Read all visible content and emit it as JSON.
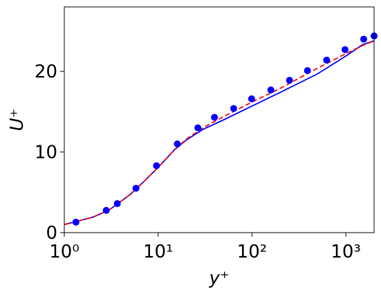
{
  "chart_data": {
    "type": "line",
    "xlabel": "y⁺",
    "ylabel": "U⁺",
    "xscale": "log",
    "xlim": [
      1,
      2000
    ],
    "ylim": [
      0,
      28
    ],
    "xticks": [
      {
        "value": 1,
        "label": "10⁰"
      },
      {
        "value": 10,
        "label": "10¹"
      },
      {
        "value": 100,
        "label": "10²"
      },
      {
        "value": 1000,
        "label": "10³"
      }
    ],
    "yticks": [
      0,
      10,
      20
    ],
    "series": [
      {
        "color": "#0000ff",
        "linestyle": "solid",
        "x": [
          1,
          2,
          3,
          5,
          7,
          10,
          15,
          20,
          30,
          50,
          100,
          200,
          500,
          1000,
          1500,
          2000
        ],
        "values": [
          1.0,
          1.9,
          2.8,
          4.7,
          6.3,
          8.1,
          10.3,
          11.5,
          12.8,
          14.0,
          15.7,
          17.4,
          19.7,
          21.9,
          23.3,
          23.8
        ]
      },
      {
        "color": "#ff0000",
        "linestyle": "dashed",
        "x": [
          1,
          2,
          3,
          5,
          7,
          10,
          15,
          20,
          30,
          50,
          100,
          200,
          500,
          1000,
          1500,
          2000
        ],
        "values": [
          1.0,
          1.9,
          2.8,
          4.7,
          6.3,
          8.1,
          10.3,
          11.6,
          13.0,
          14.4,
          16.2,
          17.9,
          20.4,
          22.2,
          23.2,
          23.8
        ]
      },
      {
        "color": "#0000ff",
        "linestyle": "none",
        "marker": "circle",
        "x": [
          1.33,
          2.8,
          3.67,
          5.8,
          9.6,
          16,
          26.5,
          39.8,
          63.8,
          99,
          159,
          251,
          390,
          624,
          980,
          1550,
          2000
        ],
        "values": [
          1.3,
          2.76,
          3.6,
          5.5,
          8.3,
          11.0,
          13.0,
          14.3,
          15.4,
          16.6,
          17.7,
          18.9,
          20.1,
          21.4,
          22.7,
          24.0,
          24.4
        ]
      }
    ]
  }
}
